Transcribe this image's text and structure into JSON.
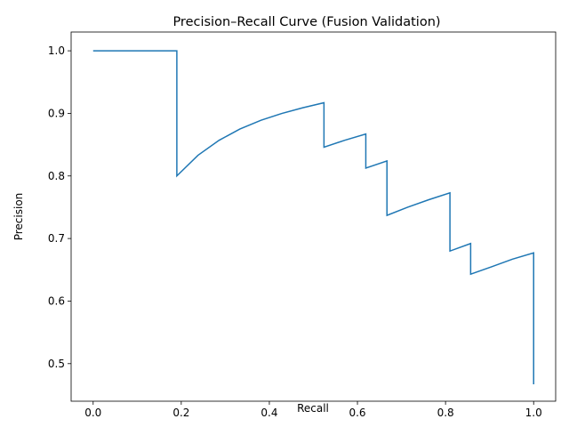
{
  "chart_data": {
    "type": "line",
    "title": "Precision–Recall Curve (Fusion Validation)",
    "xlabel": "Recall",
    "ylabel": "Precision",
    "xlim": [
      -0.05,
      1.05
    ],
    "ylim": [
      0.44,
      1.03
    ],
    "grid": false,
    "line_color": "#1f77b4",
    "x_ticks": [
      0.0,
      0.2,
      0.4,
      0.6,
      0.8,
      1.0
    ],
    "x_tick_labels": [
      "0.0",
      "0.2",
      "0.4",
      "0.6",
      "0.8",
      "1.0"
    ],
    "y_ticks": [
      0.5,
      0.6,
      0.7,
      0.8,
      0.9,
      1.0
    ],
    "y_tick_labels": [
      "0.5",
      "0.6",
      "0.7",
      "0.8",
      "0.9",
      "1.0"
    ],
    "series": [
      {
        "x": [
          0.0,
          0.048,
          0.095,
          0.143,
          0.19,
          0.19,
          0.238,
          0.286,
          0.333,
          0.381,
          0.429,
          0.476,
          0.524,
          0.524,
          0.571,
          0.619,
          0.619,
          0.667,
          0.667,
          0.714,
          0.762,
          0.81,
          0.81,
          0.857,
          0.857,
          0.905,
          0.952,
          1.0,
          1.0
        ],
        "y": [
          1.0,
          1.0,
          1.0,
          1.0,
          1.0,
          0.8,
          0.833,
          0.857,
          0.875,
          0.889,
          0.9,
          0.909,
          0.917,
          0.846,
          0.857,
          0.867,
          0.8125,
          0.824,
          0.737,
          0.75,
          0.762,
          0.773,
          0.68,
          0.692,
          0.643,
          0.655,
          0.667,
          0.677,
          0.467
        ]
      }
    ]
  }
}
